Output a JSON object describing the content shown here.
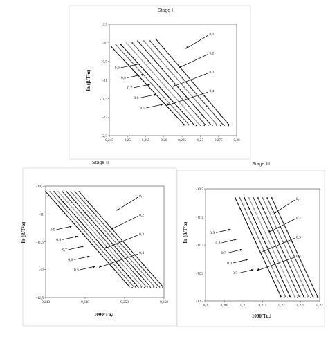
{
  "chart_data": [
    {
      "type": "scatter",
      "title": "Stage I",
      "xlabel": "",
      "ylabel": "ln (β/T²α)",
      "xlim": [
        0.245,
        0.28
      ],
      "ylim": [
        -12.5,
        -9.5
      ],
      "xticks": [
        "0,245",
        "0,25",
        "0,255",
        "0,26",
        "0,265",
        "0,27",
        "0,275",
        "0,28"
      ],
      "yticks": [
        "-9,5",
        "-10",
        "-10,5",
        "-11",
        "-11,5",
        "-12",
        "-12,5"
      ],
      "series": [
        {
          "name": "0,1",
          "color": "#222222",
          "x": [
            0.2578,
            0.2778
          ],
          "y": [
            -9.9,
            -12.2
          ]
        },
        {
          "name": "0,2",
          "color": "#3a3a3a",
          "x": [
            0.2562,
            0.2762
          ],
          "y": [
            -9.95,
            -12.2
          ]
        },
        {
          "name": "0,3",
          "color": "#777777",
          "x": [
            0.2545,
            0.2745
          ],
          "y": [
            -9.95,
            -12.2
          ]
        },
        {
          "name": "0,4",
          "color": "#222222",
          "x": [
            0.2528,
            0.2728
          ],
          "y": [
            -9.95,
            -12.2
          ]
        },
        {
          "name": "0,5",
          "color": "#444444",
          "x": [
            0.2513,
            0.2713
          ],
          "y": [
            -10.0,
            -12.2
          ]
        },
        {
          "name": "0,6",
          "color": "#999999",
          "x": [
            0.2497,
            0.2697
          ],
          "y": [
            -10.0,
            -12.2
          ]
        },
        {
          "name": "0,7",
          "color": "#111111",
          "x": [
            0.2482,
            0.2682
          ],
          "y": [
            -10.05,
            -12.2
          ]
        },
        {
          "name": "0,8",
          "color": "#666666",
          "x": [
            0.2468,
            0.2668
          ],
          "y": [
            -10.05,
            -12.2
          ]
        },
        {
          "name": "0,9",
          "color": "#111111",
          "x": [
            0.2455,
            0.2655
          ],
          "y": [
            -10.1,
            -12.2
          ]
        }
      ],
      "annotations_right": [
        "0,1",
        "0,2",
        "0,3",
        "0,4"
      ],
      "annotations_left": [
        "0,9",
        "0,8",
        "0,7",
        "0,6",
        "0,5"
      ]
    },
    {
      "type": "scatter",
      "title": "Stage II",
      "xlabel": "1000/Tα,i",
      "ylabel": "ln (β/T²α)",
      "xlim": [
        0.243,
        0.26
      ],
      "ylim": [
        -12.5,
        -10.5
      ],
      "xticks": [
        "0,243",
        "0,248",
        "0,253",
        "0,258"
      ],
      "yticks": [
        "-10,5",
        "-11",
        "-11,5",
        "-12",
        "-12,5"
      ],
      "series": [
        {
          "name": "0,1",
          "color": "#222222",
          "x": [
            0.2478,
            0.2598
          ],
          "y": [
            -10.6,
            -12.3
          ]
        },
        {
          "name": "0,2",
          "color": "#3a3a3a",
          "x": [
            0.2472,
            0.2592
          ],
          "y": [
            -10.6,
            -12.3
          ]
        },
        {
          "name": "0,3",
          "color": "#777777",
          "x": [
            0.2466,
            0.2586
          ],
          "y": [
            -10.6,
            -12.3
          ]
        },
        {
          "name": "0,4",
          "color": "#222222",
          "x": [
            0.246,
            0.258
          ],
          "y": [
            -10.6,
            -12.3
          ]
        },
        {
          "name": "0,5",
          "color": "#444444",
          "x": [
            0.2454,
            0.2574
          ],
          "y": [
            -10.6,
            -12.3
          ]
        },
        {
          "name": "0,6",
          "color": "#999999",
          "x": [
            0.2448,
            0.2568
          ],
          "y": [
            -10.6,
            -12.3
          ]
        },
        {
          "name": "0,7",
          "color": "#111111",
          "x": [
            0.2442,
            0.2562
          ],
          "y": [
            -10.6,
            -12.3
          ]
        },
        {
          "name": "0,8",
          "color": "#666666",
          "x": [
            0.2436,
            0.2556
          ],
          "y": [
            -10.6,
            -12.3
          ]
        },
        {
          "name": "0,9",
          "color": "#111111",
          "x": [
            0.243,
            0.255
          ],
          "y": [
            -10.6,
            -12.3
          ]
        }
      ],
      "annotations_right": [
        "0,1",
        "0,2",
        "0,3",
        "0,4"
      ],
      "annotations_left": [
        "0,9",
        "0,8",
        "0,7",
        "0,6",
        "0,5"
      ]
    },
    {
      "type": "scatter",
      "title": "Stage III",
      "xlabel": "1000/Tα,i",
      "ylabel": "ln (β/T²α)",
      "xlim": [
        0.2,
        0.23
      ],
      "ylim": [
        -12.7,
        -10.2
      ],
      "xticks": [
        "0,2",
        "0,205",
        "0,21",
        "0,215",
        "0,22",
        "0,225",
        "0,23"
      ],
      "yticks": [
        "-10,7",
        "-11,2",
        "-11,7",
        "-12,2",
        "-12,7"
      ],
      "series": [
        {
          "name": "0,1",
          "color": "#222222",
          "x": [
            0.2174,
            0.2294
          ],
          "y": [
            -10.4,
            -12.6
          ]
        },
        {
          "name": "0,2",
          "color": "#3a3a3a",
          "x": [
            0.2162,
            0.2282
          ],
          "y": [
            -10.4,
            -12.6
          ]
        },
        {
          "name": "0,3",
          "color": "#777777",
          "x": [
            0.215,
            0.227
          ],
          "y": [
            -10.4,
            -12.6
          ]
        },
        {
          "name": "0,4",
          "color": "#222222",
          "x": [
            0.2138,
            0.2258
          ],
          "y": [
            -10.4,
            -12.6
          ]
        },
        {
          "name": "0,5",
          "color": "#444444",
          "x": [
            0.2126,
            0.2246
          ],
          "y": [
            -10.4,
            -12.6
          ]
        },
        {
          "name": "0,6",
          "color": "#999999",
          "x": [
            0.2114,
            0.2234
          ],
          "y": [
            -10.4,
            -12.6
          ]
        },
        {
          "name": "0,7",
          "color": "#111111",
          "x": [
            0.2102,
            0.2222
          ],
          "y": [
            -10.4,
            -12.6
          ]
        },
        {
          "name": "0,8",
          "color": "#666666",
          "x": [
            0.209,
            0.221
          ],
          "y": [
            -10.4,
            -12.6
          ]
        },
        {
          "name": "0,9",
          "color": "#111111",
          "x": [
            0.2078,
            0.2198
          ],
          "y": [
            -10.4,
            -12.6
          ]
        }
      ],
      "annotations_right": [
        "0,1",
        "0,2",
        "0,3",
        "0,4"
      ],
      "annotations_left": [
        "0,9",
        "0,8",
        "0,7",
        "0,6",
        "0,5"
      ]
    }
  ]
}
